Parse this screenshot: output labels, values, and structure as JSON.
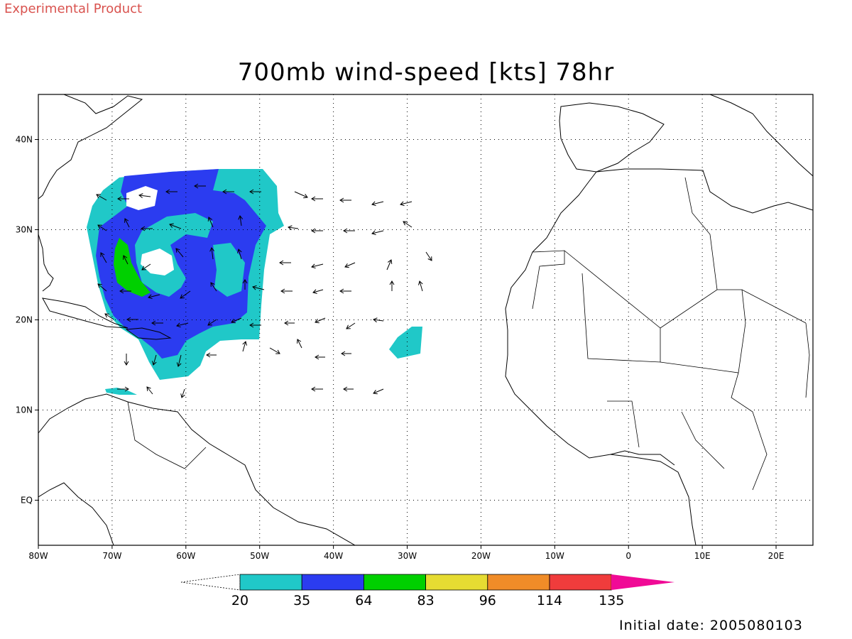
{
  "header": {
    "experimental_label": "Experimental Product",
    "title": "700mb wind-speed [kts] 78hr"
  },
  "map": {
    "lon_range": [
      -80,
      25
    ],
    "lat_range": [
      -5,
      45
    ],
    "x_ticks": [
      {
        "lon": -80,
        "label": "80W"
      },
      {
        "lon": -70,
        "label": "70W"
      },
      {
        "lon": -60,
        "label": "60W"
      },
      {
        "lon": -50,
        "label": "50W"
      },
      {
        "lon": -40,
        "label": "40W"
      },
      {
        "lon": -30,
        "label": "30W"
      },
      {
        "lon": -20,
        "label": "20W"
      },
      {
        "lon": -10,
        "label": "10W"
      },
      {
        "lon": 0,
        "label": "0"
      },
      {
        "lon": 10,
        "label": "10E"
      },
      {
        "lon": 20,
        "label": "20E"
      }
    ],
    "y_ticks": [
      {
        "lat": 40,
        "label": "40N"
      },
      {
        "lat": 30,
        "label": "30N"
      },
      {
        "lat": 20,
        "label": "20N"
      },
      {
        "lat": 10,
        "label": "10N"
      },
      {
        "lat": 0,
        "label": "EQ"
      }
    ],
    "grid": "dotted"
  },
  "colorbar": {
    "labels": [
      "20",
      "35",
      "64",
      "83",
      "96",
      "114",
      "135"
    ],
    "colors": [
      "#20c8c8",
      "#2b3cf0",
      "#00d000",
      "#e6dc32",
      "#f08c28",
      "#f03c3c",
      "#f00a96"
    ]
  },
  "footer": {
    "initial_date": "Initial date: 2005080103"
  }
}
